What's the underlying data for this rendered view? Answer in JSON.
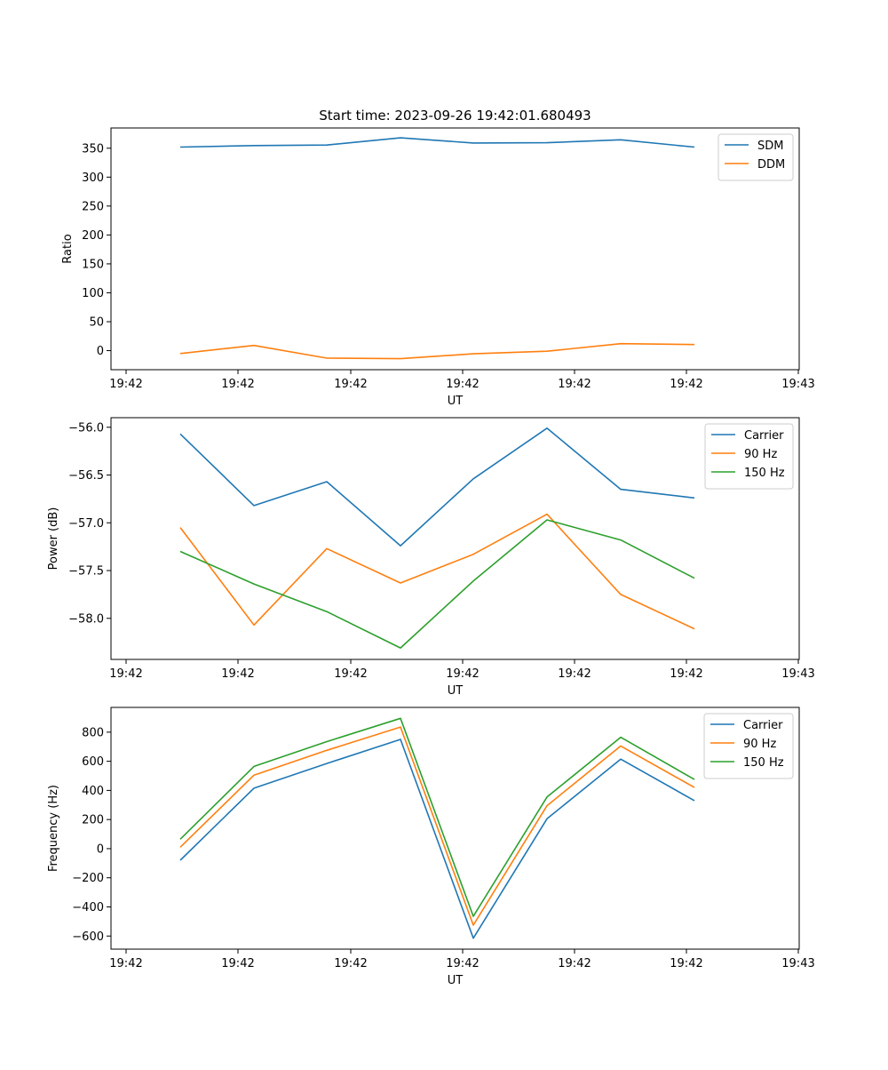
{
  "chart_data": [
    {
      "type": "line",
      "title": "Start time: 2023-09-26 19:42:01.680493",
      "xlabel": "UT",
      "ylabel": "Ratio",
      "x_tick_labels": [
        "19:42",
        "19:42",
        "19:42",
        "19:42",
        "19:42",
        "19:42",
        "19:43"
      ],
      "x_point_count": 8,
      "ylim": [
        -33,
        385
      ],
      "yticks": [
        0,
        50,
        100,
        150,
        200,
        250,
        300,
        350
      ],
      "legend": "top-right",
      "series": [
        {
          "name": "SDM",
          "color": "#1f77b4",
          "values": [
            352,
            354.5,
            355.5,
            368,
            359,
            359.5,
            364.5,
            352
          ]
        },
        {
          "name": "DDM",
          "color": "#ff7f0e",
          "values": [
            -5,
            9,
            -13,
            -14,
            -5.5,
            -1,
            12,
            10.5
          ]
        }
      ]
    },
    {
      "type": "line",
      "title": "",
      "xlabel": "UT",
      "ylabel": "Power (dB)",
      "x_tick_labels": [
        "19:42",
        "19:42",
        "19:42",
        "19:42",
        "19:42",
        "19:42",
        "19:43"
      ],
      "x_point_count": 8,
      "ylim": [
        -58.43,
        -55.9
      ],
      "yticks": [
        -58.0,
        -57.5,
        -57.0,
        -56.5,
        -56.0
      ],
      "legend": "top-right",
      "series": [
        {
          "name": "Carrier",
          "color": "#1f77b4",
          "values": [
            -56.07,
            -56.82,
            -56.57,
            -57.24,
            -56.54,
            -56.01,
            -56.65,
            -56.74
          ]
        },
        {
          "name": "90 Hz",
          "color": "#ff7f0e",
          "values": [
            -57.05,
            -58.07,
            -57.27,
            -57.63,
            -57.33,
            -56.91,
            -57.75,
            -58.11
          ]
        },
        {
          "name": "150 Hz",
          "color": "#2ca02c",
          "values": [
            -57.3,
            -57.64,
            -57.93,
            -58.31,
            -57.61,
            -56.97,
            -57.18,
            -57.58
          ]
        }
      ]
    },
    {
      "type": "line",
      "title": "",
      "xlabel": "UT",
      "ylabel": "Frequency (Hz)",
      "x_tick_labels": [
        "19:42",
        "19:42",
        "19:42",
        "19:42",
        "19:42",
        "19:42",
        "19:43"
      ],
      "x_point_count": 8,
      "ylim": [
        -690,
        970
      ],
      "yticks": [
        -600,
        -400,
        -200,
        0,
        200,
        400,
        600,
        800
      ],
      "legend": "top-right",
      "series": [
        {
          "name": "Carrier",
          "color": "#1f77b4",
          "values": [
            -80,
            415,
            585,
            750,
            -615,
            205,
            615,
            330
          ]
        },
        {
          "name": "90 Hz",
          "color": "#ff7f0e",
          "values": [
            10,
            505,
            675,
            835,
            -525,
            295,
            705,
            420
          ]
        },
        {
          "name": "150 Hz",
          "color": "#2ca02c",
          "values": [
            65,
            565,
            735,
            895,
            -465,
            355,
            765,
            475
          ]
        }
      ]
    }
  ]
}
